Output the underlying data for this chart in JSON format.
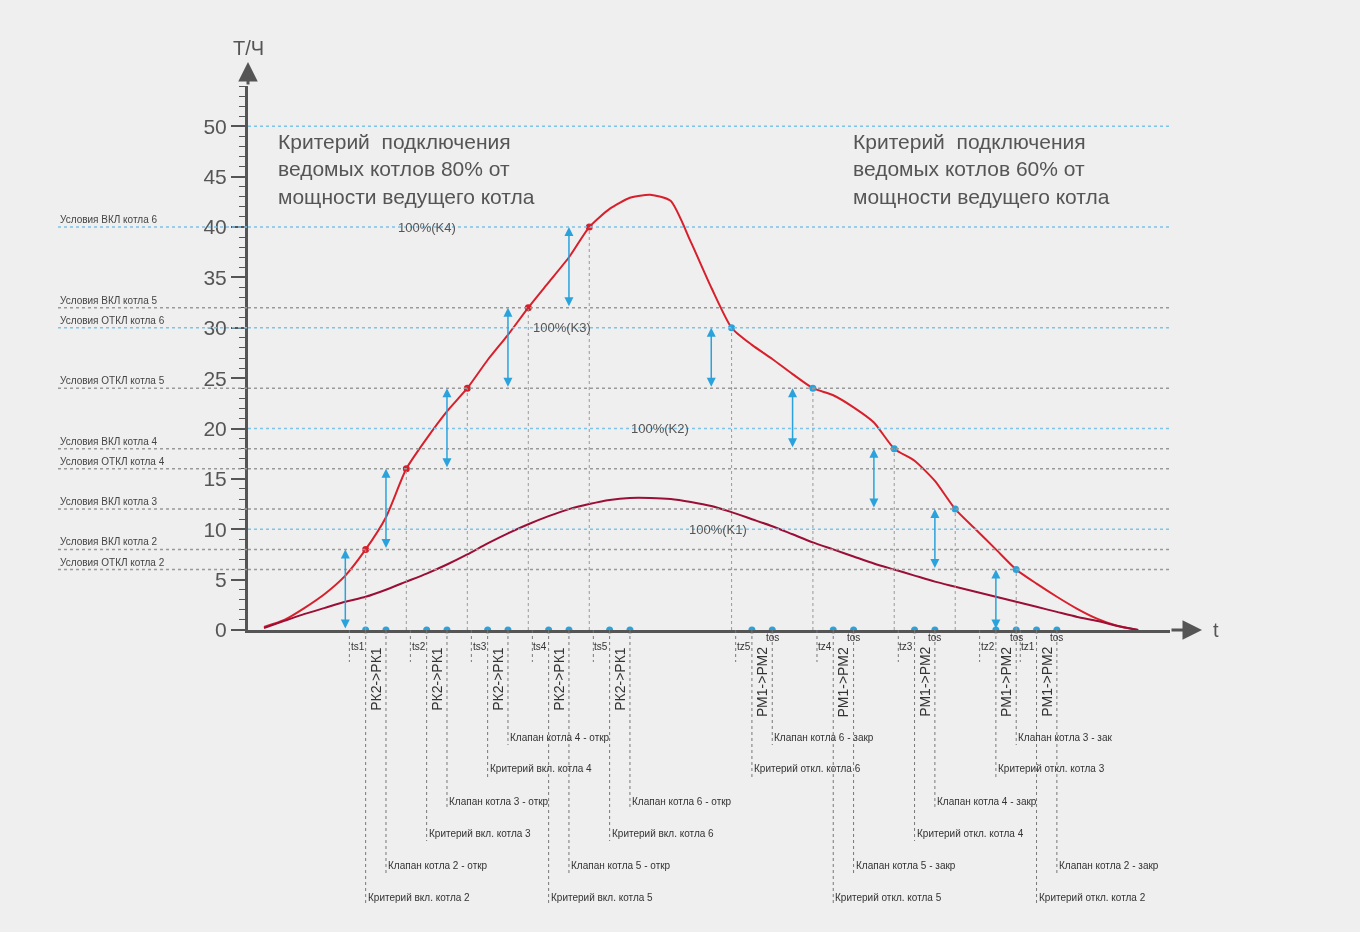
{
  "chart_data": {
    "type": "line",
    "ylabel": "Т/Ч",
    "xlabel": "t",
    "ylim": [
      0,
      54
    ],
    "yticks": [
      0,
      5,
      10,
      15,
      20,
      25,
      30,
      35,
      40,
      45,
      50
    ],
    "categories": [
      null,
      null,
      null,
      null,
      null,
      null,
      null,
      null,
      null,
      null,
      null,
      null,
      null,
      null,
      null,
      null,
      null,
      null,
      null,
      null,
      null,
      null,
      null,
      null,
      null,
      null,
      null,
      null,
      null,
      null,
      null,
      null,
      null,
      null,
      null,
      null,
      null,
      null,
      null,
      null,
      null,
      null,
      null,
      null,
      null
    ],
    "series": [
      {
        "type": "line",
        "color": "#d7202b",
        "values": [
          0.3,
          1.0,
          2.2,
          3.6,
          5.4,
          8,
          11.2,
          16,
          19,
          21.7,
          24,
          26.8,
          29.3,
          32,
          34.5,
          37,
          40,
          41.8,
          42.9,
          43.2,
          42.6,
          38.5,
          34,
          30,
          28.3,
          26.9,
          25.4,
          24,
          23.3,
          22.1,
          20.6,
          18,
          16.8,
          14.8,
          12,
          10,
          8,
          6,
          4.6,
          3.3,
          2.1,
          1.1,
          0.4,
          0,
          null
        ]
      },
      {
        "type": "line",
        "color": "#9b0e36",
        "values": [
          0.2,
          0.9,
          1.6,
          2.2,
          2.8,
          3.3,
          4.0,
          4.8,
          5.6,
          6.5,
          7.5,
          8.6,
          9.6,
          10.5,
          11.3,
          12.0,
          12.5,
          12.9,
          13.1,
          13.1,
          13.0,
          12.7,
          12.3,
          11.7,
          11.0,
          10.3,
          9.5,
          8.7,
          8.0,
          7.3,
          6.6,
          6.0,
          5.4,
          4.8,
          4.3,
          3.8,
          3.3,
          2.8,
          2.3,
          1.8,
          1.3,
          0.9,
          0.4,
          0,
          null
        ]
      },
      {
        "type": "scatter",
        "colors": [
          null,
          null,
          null,
          null,
          null,
          "#d7202b",
          null,
          "#d7202b",
          null,
          null,
          "#d7202b",
          null,
          null,
          "#d7202b",
          null,
          null,
          "#d7202b",
          null,
          null,
          null,
          null,
          null,
          null,
          "#2aa3dc",
          null,
          null,
          null,
          "#2aa3dc",
          null,
          null,
          null,
          "#2aa3dc",
          null,
          null,
          "#2aa3dc",
          null,
          null,
          "#2aa3dc",
          null,
          null,
          null,
          null,
          null,
          null,
          null
        ],
        "values": [
          null,
          null,
          null,
          null,
          null,
          8,
          null,
          16,
          null,
          null,
          24,
          null,
          null,
          32,
          null,
          null,
          40,
          null,
          null,
          null,
          null,
          null,
          null,
          30,
          null,
          null,
          null,
          24,
          null,
          null,
          null,
          18,
          null,
          null,
          12,
          null,
          null,
          6,
          null,
          null,
          null,
          null,
          null,
          null,
          null
        ]
      },
      {
        "type": "scatter",
        "color": "#2aa3dc",
        "values": [
          null,
          null,
          null,
          null,
          null,
          0,
          0,
          null,
          0,
          0,
          null,
          0,
          0,
          null,
          0,
          0,
          null,
          0,
          0,
          null,
          null,
          null,
          null,
          null,
          0,
          0,
          null,
          null,
          0,
          0,
          null,
          null,
          0,
          0,
          null,
          null,
          0,
          0,
          0,
          0,
          null,
          null,
          null,
          null,
          null
        ]
      }
    ],
    "ref_lines": [
      {
        "axis": "y",
        "value": 50,
        "color": "#7fc4e6"
      },
      {
        "axis": "y",
        "value": 20,
        "color": "#7fc4e6"
      },
      {
        "axis": "y",
        "value": 10,
        "color": "#7fc4e6"
      },
      {
        "axis": "y",
        "value": 40,
        "label": "Условия ВКЛ котла 6",
        "color": "#7fc4e6"
      },
      {
        "axis": "y",
        "value": 32,
        "label": "Условия ВКЛ котла 5",
        "color": "#999999"
      },
      {
        "axis": "y",
        "value": 30,
        "label": "Условия ОТКЛ котла 6",
        "color": "#7fc4e6"
      },
      {
        "axis": "y",
        "value": 24,
        "label": "Условия ОТКЛ котла 5",
        "color": "#999999"
      },
      {
        "axis": "y",
        "value": 18,
        "label": "Условия ВКЛ котла 4",
        "color": "#999999"
      },
      {
        "axis": "y",
        "value": 16,
        "label": "Условия ОТКЛ котла 4",
        "color": "#999999"
      },
      {
        "axis": "y",
        "value": 12,
        "label": "Условия ВКЛ котла 3",
        "color": "#999999"
      },
      {
        "axis": "y",
        "value": 8,
        "label": "Условия ВКЛ котла 2",
        "color": "#999999"
      },
      {
        "axis": "y",
        "value": 6,
        "label": "Условия ОТКЛ котла 2",
        "color": "#999999"
      }
    ],
    "annotations": [
      "Критерий  подключения\nведомых котлов 80% от\nмощности ведущего котла",
      "Критерий  подключения\nведомых котлов 60% от\nмощности ведущего котла",
      {
        "text": "100%(K4)",
        "y": 40
      },
      {
        "text": "100%(K3)",
        "y": 30
      },
      {
        "text": "100%(K2)",
        "y": 20
      },
      {
        "text": "100%(K1)",
        "y": 10
      },
      "ts1",
      "ts2",
      "ts3",
      "ts4",
      "ts5",
      "tz5",
      "tz4",
      "tz3",
      "tz2",
      "tz1",
      "РК2->РК1",
      "РК2->РК1",
      "РК2->РК1",
      "РК2->РК1",
      "РК2->РК1",
      "РМ1->РМ2",
      "РМ1->РМ2",
      "РМ1->РМ2",
      "РМ1->РМ2",
      "РМ1->РМ2",
      "Критерий вкл. котла 2",
      "Клапан котла 2 - откр",
      "Критерий вкл. котла 3",
      "Клапан котла 3 - откр",
      "Критерий вкл. котла 4",
      "Клапан котла 4 - откр",
      "Критерий вкл. котла 5",
      "Клапан котла 5 - откр",
      "Критерий вкл. котла 6",
      "Клапан котла 6 - откр",
      "Критерий откл. котла 6",
      "Клапан котла 6 - закр",
      "Критерий откл. котла 5",
      "Клапан котла 5 - закр",
      "Критерий откл. котла 4",
      "Клапан котла 4 - закр",
      "Критерий откл. котла 3",
      "Клапан котла 3 - зак",
      "Критерий откл. котла 2",
      "Клапан котла 2 - закр",
      "tos",
      "tos",
      "tos",
      "tos",
      "tos"
    ]
  }
}
